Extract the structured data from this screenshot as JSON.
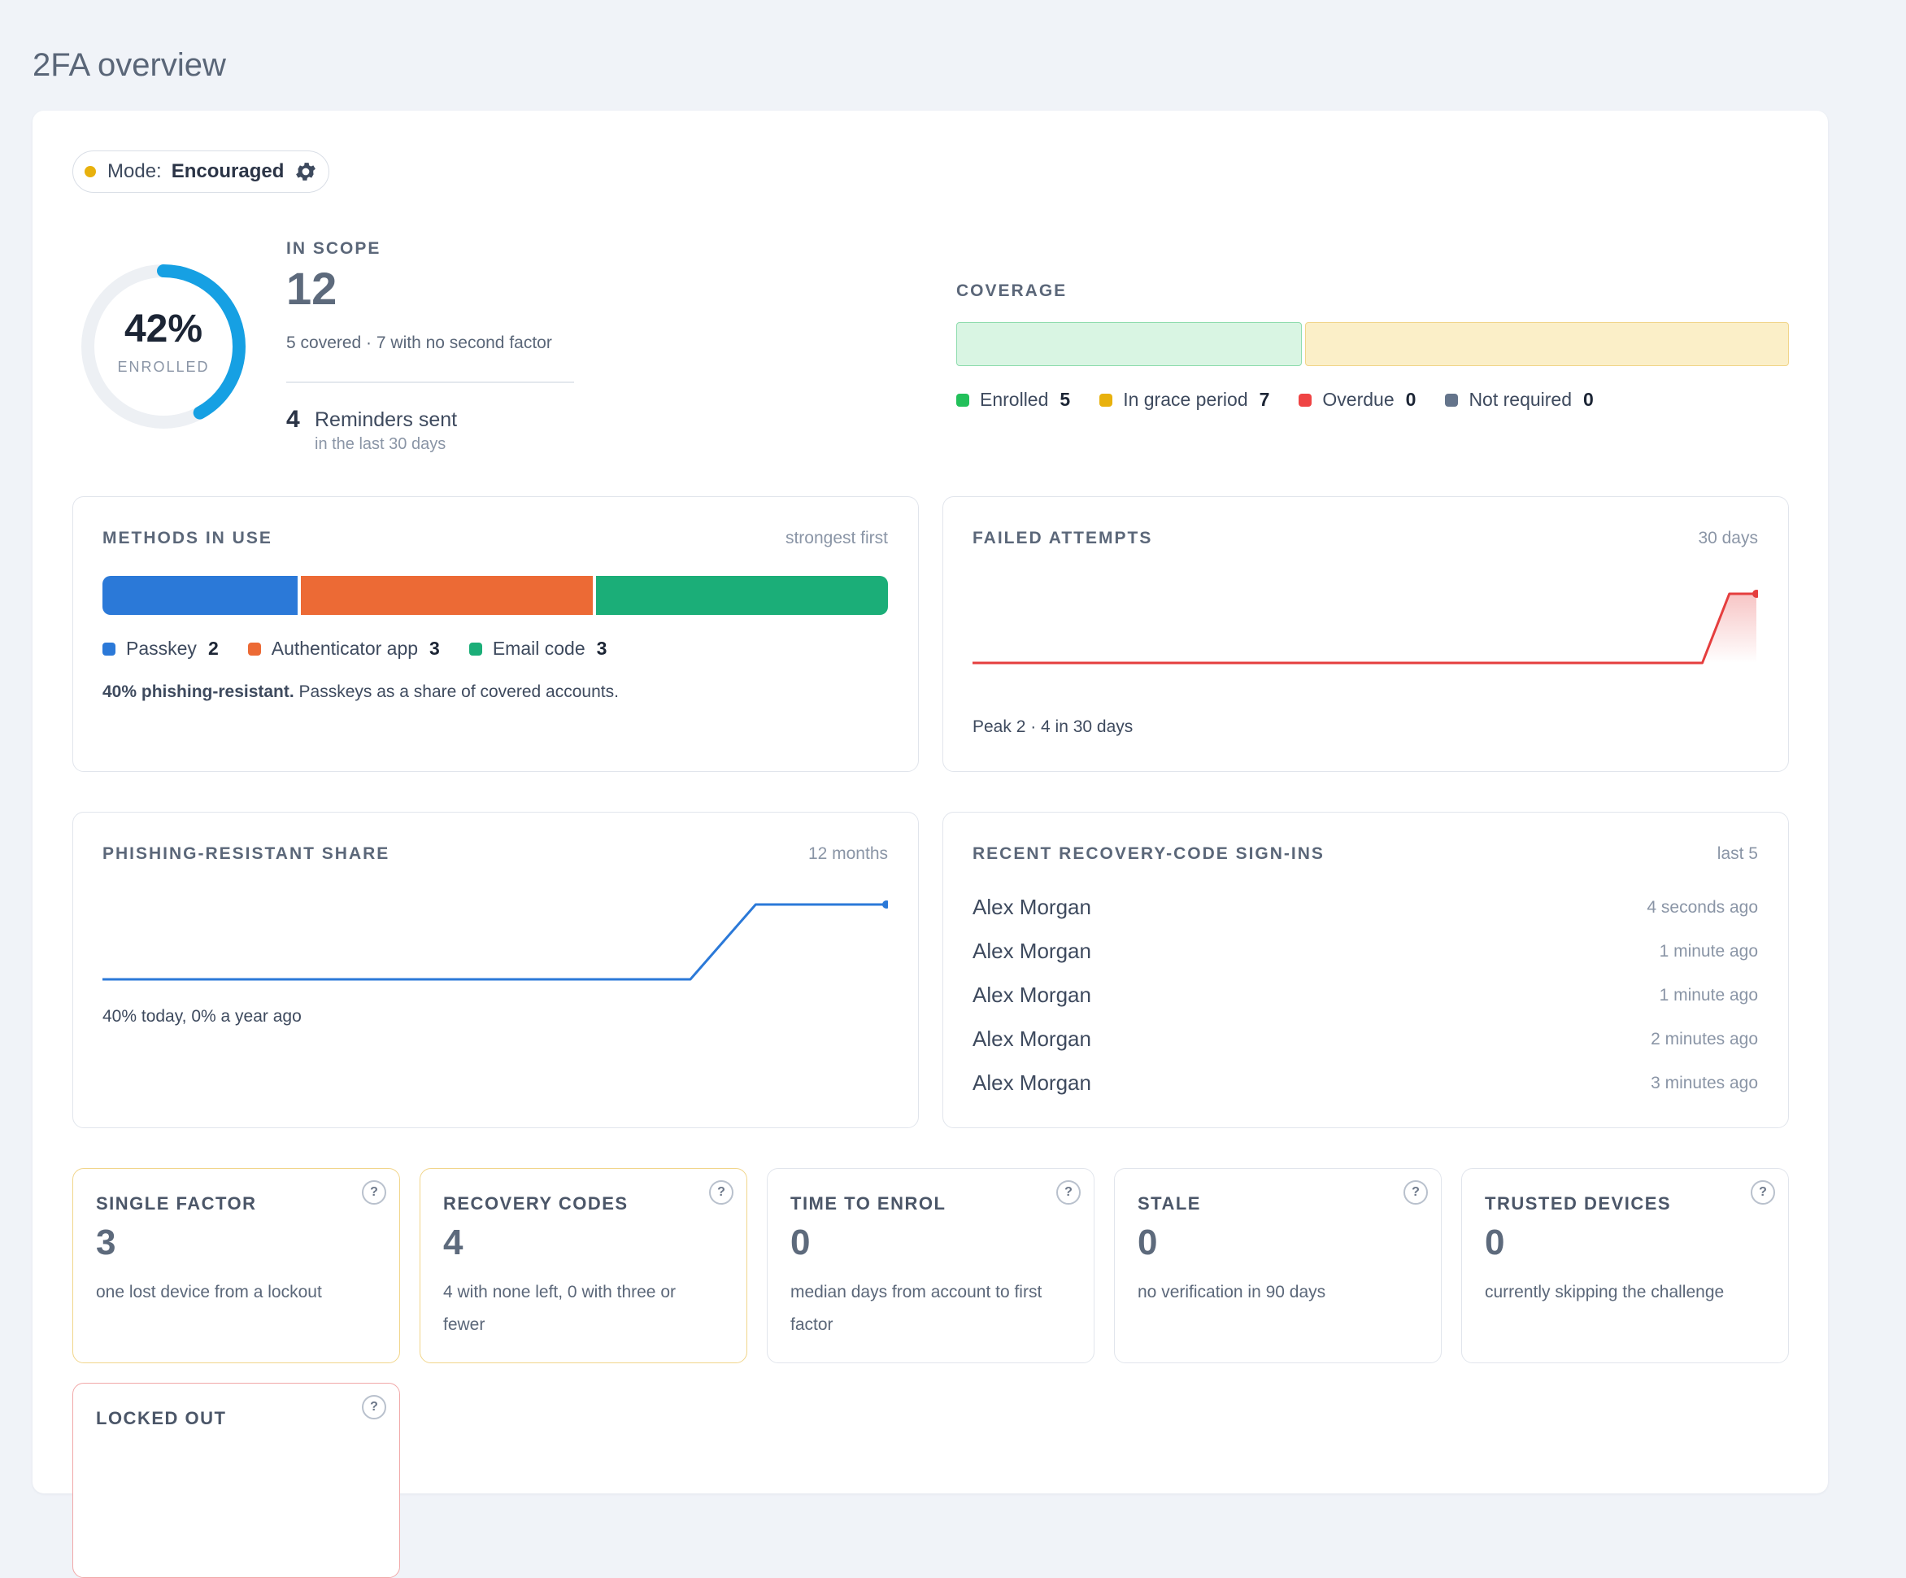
{
  "page": {
    "title": "2FA overview"
  },
  "mode": {
    "label": "Mode:",
    "value": "Encouraged",
    "dot_color": "#e8b10d",
    "icon": "gear-icon"
  },
  "enrollment": {
    "percent": 42,
    "percent_label": "42%",
    "caption": "ENROLLED",
    "ring_color": "#16a0e3"
  },
  "scope": {
    "kicker": "IN SCOPE",
    "count": "12",
    "subtitle": "5 covered · 7 with no second factor",
    "reminders_count": "4",
    "reminders_label": "Reminders sent",
    "reminders_sub": "in the last 30 days"
  },
  "coverage": {
    "kicker": "COVERAGE",
    "segments": [
      {
        "name": "Enrolled",
        "value": 5,
        "fill": "#d9f5e3",
        "border": "#8fdcae"
      },
      {
        "name": "In grace period",
        "value": 7,
        "fill": "#fbefc8",
        "border": "#f1d58a"
      }
    ],
    "legend": [
      {
        "label": "Enrolled",
        "value": "5",
        "color": "#22c05a"
      },
      {
        "label": "In grace period",
        "value": "7",
        "color": "#e8b10d"
      },
      {
        "label": "Overdue",
        "value": "0",
        "color": "#ef4444"
      },
      {
        "label": "Not required",
        "value": "0",
        "color": "#64748b"
      }
    ]
  },
  "methods": {
    "title": "METHODS IN USE",
    "hint": "strongest first",
    "items": [
      {
        "label": "Passkey",
        "value": "2",
        "count": 2,
        "color": "#2b79d8"
      },
      {
        "label": "Authenticator app",
        "value": "3",
        "count": 3,
        "color": "#ec6a35"
      },
      {
        "label": "Email code",
        "value": "3",
        "count": 3,
        "color": "#1bae78"
      }
    ],
    "note_bold": "40% phishing-resistant.",
    "note_rest": " Passkeys as a share of covered accounts."
  },
  "failed": {
    "title": "FAILED ATTEMPTS",
    "hint": "30 days",
    "footer": "Peak 2 · 4 in 30 days",
    "color": "#e53e3e",
    "series": [
      0,
      0,
      0,
      0,
      0,
      0,
      0,
      0,
      0,
      0,
      0,
      0,
      0,
      0,
      0,
      0,
      0,
      0,
      0,
      0,
      0,
      0,
      0,
      0,
      0,
      0,
      0,
      0,
      2,
      2
    ]
  },
  "phishing": {
    "title": "PHISHING-RESISTANT SHARE",
    "hint": "12 months",
    "footer": "40% today, 0% a year ago",
    "color": "#2b79d8",
    "series": [
      0,
      0,
      0,
      0,
      0,
      0,
      0,
      0,
      0,
      0,
      40,
      40,
      40
    ]
  },
  "recovery": {
    "title": "RECENT RECOVERY-CODE SIGN-INS",
    "hint": "last 5",
    "rows": [
      {
        "name": "Alex Morgan",
        "time": "4 seconds ago"
      },
      {
        "name": "Alex Morgan",
        "time": "1 minute ago"
      },
      {
        "name": "Alex Morgan",
        "time": "1 minute ago"
      },
      {
        "name": "Alex Morgan",
        "time": "2 minutes ago"
      },
      {
        "name": "Alex Morgan",
        "time": "3 minutes ago"
      }
    ]
  },
  "stats": [
    {
      "title": "SINGLE FACTOR",
      "value": "3",
      "desc": "one lost device from a lockout",
      "tone": "warn"
    },
    {
      "title": "RECOVERY CODES",
      "value": "4",
      "desc": "4 with none left, 0 with three or fewer",
      "tone": "warn"
    },
    {
      "title": "TIME TO ENROL",
      "value": "0",
      "desc": "median days from account to first factor",
      "tone": "normal"
    },
    {
      "title": "STALE",
      "value": "0",
      "desc": "no verification in 90 days",
      "tone": "normal"
    },
    {
      "title": "TRUSTED DEVICES",
      "value": "0",
      "desc": "currently skipping the challenge",
      "tone": "normal"
    },
    {
      "title": "LOCKED OUT",
      "value": "",
      "desc": "",
      "tone": "danger"
    }
  ],
  "help_glyph": "?"
}
